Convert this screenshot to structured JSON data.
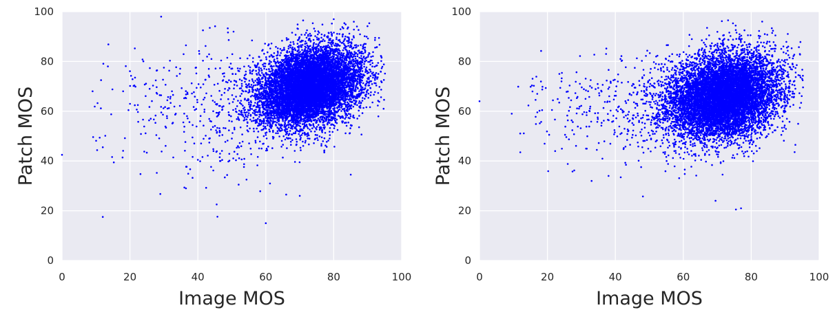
{
  "chart_data": [
    {
      "type": "scatter",
      "title": "",
      "xlabel": "Image MOS",
      "ylabel": "Patch MOS",
      "xlim": [
        0,
        100
      ],
      "ylim": [
        0,
        100
      ],
      "xticks": [
        "0",
        "20",
        "40",
        "60",
        "80",
        "100"
      ],
      "yticks": [
        "0",
        "20",
        "40",
        "60",
        "80",
        "100"
      ],
      "grid": true,
      "background": "#eaeaf2",
      "point_color": "#0000ff",
      "cluster": {
        "center": [
          73,
          70
        ],
        "sd": [
          7.5,
          8.0
        ],
        "corr": 0.25,
        "n": 9000
      },
      "sparse_tail": {
        "x_range": [
          8,
          62
        ],
        "y_mean": 60,
        "y_sd": 13,
        "n": 420
      },
      "points": [
        [
          0,
          42.5
        ],
        [
          12,
          17.5
        ],
        [
          60,
          15
        ],
        [
          36.5,
          29
        ],
        [
          43.5,
          93.5
        ],
        [
          41.5,
          92.5
        ],
        [
          50.5,
          92
        ],
        [
          36.5,
          86.5
        ],
        [
          30,
          77.5
        ],
        [
          13.5,
          78
        ],
        [
          9,
          68
        ],
        [
          18,
          68
        ],
        [
          21.5,
          73.5
        ],
        [
          94,
          82
        ],
        [
          85,
          34.5
        ],
        [
          80,
          97
        ],
        [
          71,
          96.5
        ],
        [
          66,
          26.5
        ],
        [
          70,
          26
        ],
        [
          52,
          30.5
        ]
      ]
    },
    {
      "type": "scatter",
      "title": "",
      "xlabel": "Image MOS",
      "ylabel": "Patch MOS",
      "xlim": [
        0,
        100
      ],
      "ylim": [
        0,
        100
      ],
      "xticks": [
        "0",
        "20",
        "40",
        "60",
        "80",
        "100"
      ],
      "yticks": [
        "0",
        "20",
        "40",
        "60",
        "80",
        "100"
      ],
      "grid": true,
      "background": "#eaeaf2",
      "point_color": "#0000ff",
      "cluster": {
        "center": [
          72,
          66
        ],
        "sd": [
          8,
          8.5
        ],
        "corr": 0.2,
        "n": 9000
      },
      "sparse_tail": {
        "x_range": [
          9,
          58
        ],
        "y_mean": 61,
        "y_sd": 11,
        "n": 380
      },
      "points": [
        [
          0,
          64
        ],
        [
          12,
          43.5
        ],
        [
          33,
          32
        ],
        [
          38,
          34
        ],
        [
          69.5,
          24
        ],
        [
          75.5,
          20.5
        ],
        [
          77,
          21
        ],
        [
          67,
          93.5
        ],
        [
          84,
          91
        ],
        [
          93,
          46.5
        ],
        [
          95,
          73
        ],
        [
          9.5,
          59
        ],
        [
          17,
          67
        ],
        [
          23.5,
          75
        ],
        [
          41.5,
          81
        ],
        [
          52,
          82
        ]
      ]
    }
  ]
}
